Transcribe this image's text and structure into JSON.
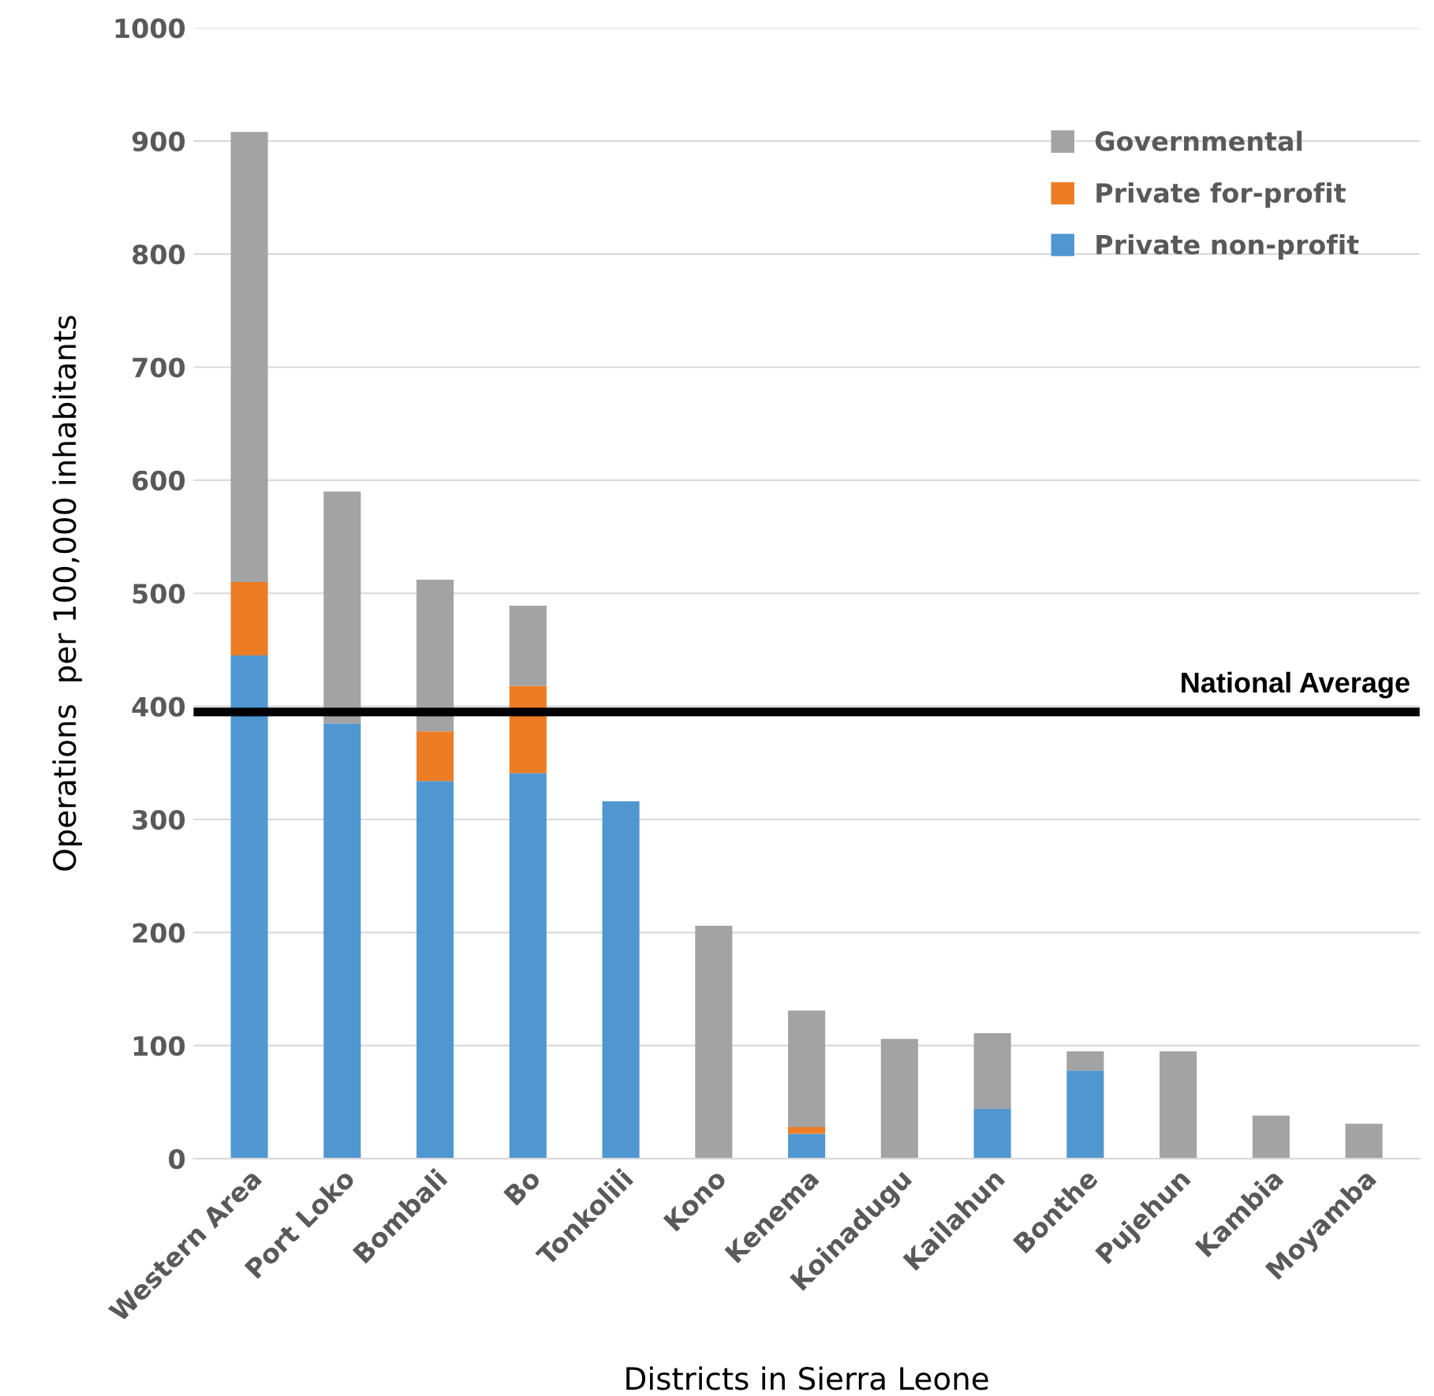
{
  "chart_data": {
    "type": "bar",
    "stacked": true,
    "xlabel": "Districts in Sierra Leone",
    "ylabel": "Operations  per 100,000 inhabitants",
    "categories": [
      "Western Area",
      "Port Loko",
      "Bombali",
      "Bo",
      "Tonkolili",
      "Kono",
      "Kenema",
      "Koinadugu",
      "Kailahun",
      "Bonthe",
      "Pujehun",
      "Kambia",
      "Moyamba"
    ],
    "series": [
      {
        "name": "Private non-profit",
        "color": "#5097d1",
        "values": [
          445,
          385,
          334,
          341,
          316,
          0,
          22,
          0,
          44,
          78,
          0,
          0,
          0
        ]
      },
      {
        "name": "Private for-profit",
        "color": "#ed7d24",
        "values": [
          65,
          0,
          44,
          77,
          0,
          0,
          6,
          0,
          0,
          0,
          0,
          0,
          0
        ]
      },
      {
        "name": "Governmental",
        "color": "#a3a3a3",
        "values": [
          398,
          205,
          134,
          71,
          0,
          206,
          103,
          106,
          67,
          17,
          95,
          38,
          31
        ]
      }
    ],
    "ylim": [
      0,
      1000
    ],
    "yticks": [
      0,
      100,
      200,
      300,
      400,
      500,
      600,
      700,
      800,
      900,
      1000
    ],
    "grid": "y",
    "legend": "top right",
    "ref_lines": [
      {
        "axis": "y",
        "value": 395,
        "label": "National Average",
        "color": "#000000",
        "line_style": "solid"
      }
    ]
  }
}
